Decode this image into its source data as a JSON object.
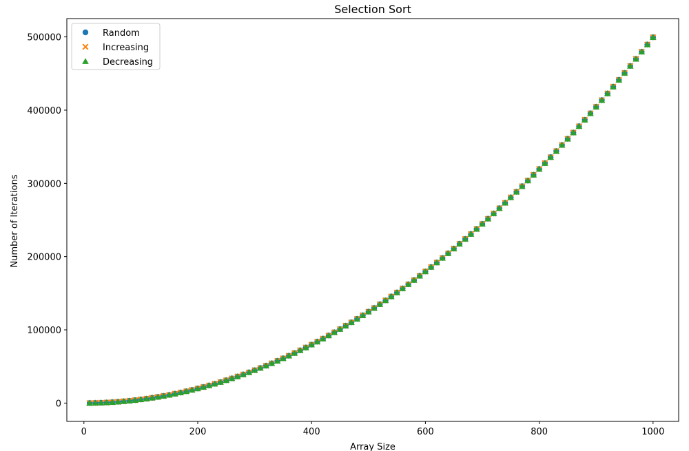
{
  "chart_data": {
    "type": "scatter",
    "title": "Selection Sort",
    "xlabel": "Array Size",
    "ylabel": "Number of Iterations",
    "xlim": [
      -30,
      1045
    ],
    "ylim": [
      -25000,
      525000
    ],
    "xticks": [
      0,
      200,
      400,
      600,
      800,
      1000
    ],
    "yticks": [
      0,
      100000,
      200000,
      300000,
      400000,
      500000
    ],
    "legend_position": "top-left",
    "x": {
      "start": 10,
      "stop": 1000,
      "step": 10
    },
    "series": [
      {
        "name": "Random",
        "marker": "circle",
        "color": "#1f77b4",
        "formula": "n*(n-1)/2"
      },
      {
        "name": "Increasing",
        "marker": "x",
        "color": "#ff7f0e",
        "formula": "n*(n-1)/2"
      },
      {
        "name": "Decreasing",
        "marker": "triangle",
        "color": "#2ca02c",
        "formula": "n*(n-1)/2"
      }
    ]
  }
}
